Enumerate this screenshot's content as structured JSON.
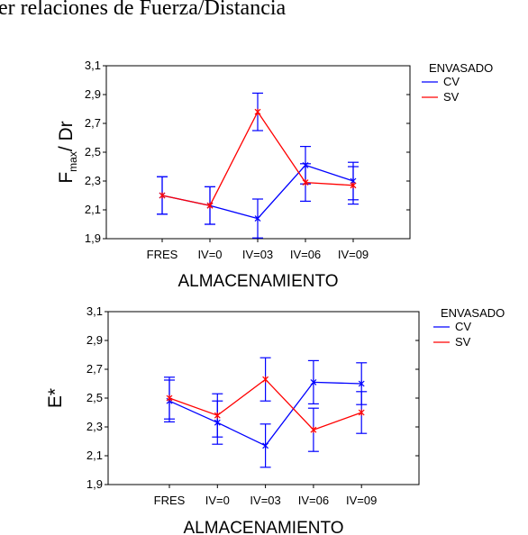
{
  "heading": "er relaciones de Fuerza/Distancia",
  "chart_data": [
    {
      "type": "line",
      "ylabel": "F",
      "ylabel_sub": "max",
      "ylabel_rest": "/ Dr",
      "xlabel": "ALMACENAMIENTO",
      "legend_title": "ENVASADO",
      "legend": "top-right-outside",
      "error_color": "#0000ff",
      "categories": [
        "FRES",
        "IV=0",
        "IV=03",
        "IV=06",
        "IV=09"
      ],
      "ylim": [
        1.9,
        3.1
      ],
      "yticks": [
        {
          "value": 1.9,
          "label": "1,9"
        },
        {
          "value": 2.1,
          "label": "2,1"
        },
        {
          "value": 2.3,
          "label": "2,3"
        },
        {
          "value": 2.5,
          "label": "2,5"
        },
        {
          "value": 2.7,
          "label": "2,7"
        },
        {
          "value": 2.9,
          "label": "2,9"
        },
        {
          "value": 3.1,
          "label": "3,1"
        }
      ],
      "series": [
        {
          "name": "CV",
          "color": "#0000ff",
          "values": [
            2.2,
            2.13,
            2.04,
            2.41,
            2.3
          ],
          "errors": [
            0.13,
            0.13,
            0.135,
            0.13,
            0.13
          ]
        },
        {
          "name": "SV",
          "color": "#ff0000",
          "values": [
            2.2,
            2.13,
            2.78,
            2.29,
            2.27
          ],
          "errors": [
            0.13,
            0.13,
            0.13,
            0.13,
            0.13
          ]
        }
      ]
    },
    {
      "type": "line",
      "ylabel": "E*",
      "xlabel": "ALMACENAMIENTO",
      "legend_title": "ENVASADO",
      "legend": "top-right-outside",
      "error_color": "#0000ff",
      "categories": [
        "FRES",
        "IV=0",
        "IV=03",
        "IV=06",
        "IV=09"
      ],
      "ylim": [
        1.9,
        3.1
      ],
      "yticks": [
        {
          "value": 1.9,
          "label": "1,9"
        },
        {
          "value": 2.1,
          "label": "2,1"
        },
        {
          "value": 2.3,
          "label": "2,3"
        },
        {
          "value": 2.5,
          "label": "2,5"
        },
        {
          "value": 2.7,
          "label": "2,7"
        },
        {
          "value": 2.9,
          "label": "2,9"
        },
        {
          "value": 3.1,
          "label": "3,1"
        }
      ],
      "series": [
        {
          "name": "CV",
          "color": "#0000ff",
          "values": [
            2.48,
            2.33,
            2.17,
            2.61,
            2.6
          ],
          "errors": [
            0.145,
            0.15,
            0.15,
            0.15,
            0.145
          ]
        },
        {
          "name": "SV",
          "color": "#ff0000",
          "values": [
            2.5,
            2.38,
            2.63,
            2.28,
            2.4
          ],
          "errors": [
            0.145,
            0.15,
            0.15,
            0.15,
            0.145
          ]
        }
      ]
    }
  ]
}
